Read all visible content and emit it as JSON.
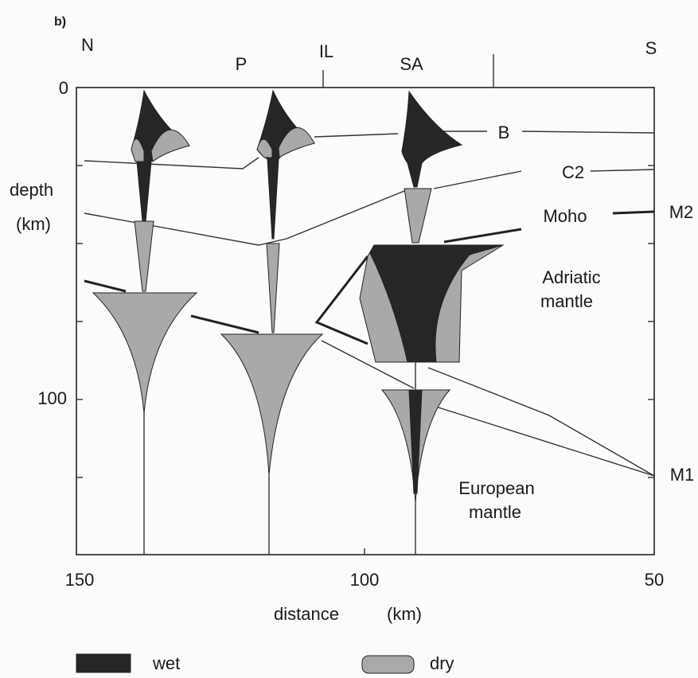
{
  "panel_label": "b)",
  "top_labels": [
    "N",
    "P",
    "IL",
    "SA",
    "S"
  ],
  "y_axis": {
    "label": [
      "depth",
      "(km)"
    ],
    "ticks": [
      0,
      100
    ]
  },
  "x_axis": {
    "label": [
      "distance",
      "(km)"
    ],
    "ticks": [
      150,
      100,
      50
    ]
  },
  "annotations": {
    "B": "B",
    "C2": "C2",
    "Moho": "Moho",
    "M2": "M2",
    "M1": "M1",
    "adriatic": [
      "Adriatic",
      "mantle"
    ],
    "european": [
      "European",
      "mantle"
    ]
  },
  "legend": [
    {
      "label": "wet"
    },
    {
      "label": "dry"
    }
  ]
}
